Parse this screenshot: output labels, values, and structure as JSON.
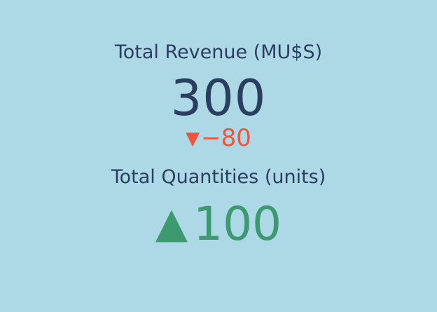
{
  "colors": {
    "background": "#add8e6",
    "text": "#2a3f5f",
    "decreasing": "#ef553b",
    "increasing": "#3d9970"
  },
  "chart_data": [
    {
      "type": "indicator",
      "title": "Total Revenue (MU$S)",
      "value": 300,
      "value_label": "300",
      "delta": -80,
      "delta_label": "−80",
      "delta_direction": "decreasing",
      "delta_symbol": "▼"
    },
    {
      "type": "indicator",
      "title": "Total Quantities (units)",
      "value": 100,
      "value_label": "100",
      "delta_direction": "increasing",
      "value_symbol": "▲"
    }
  ]
}
